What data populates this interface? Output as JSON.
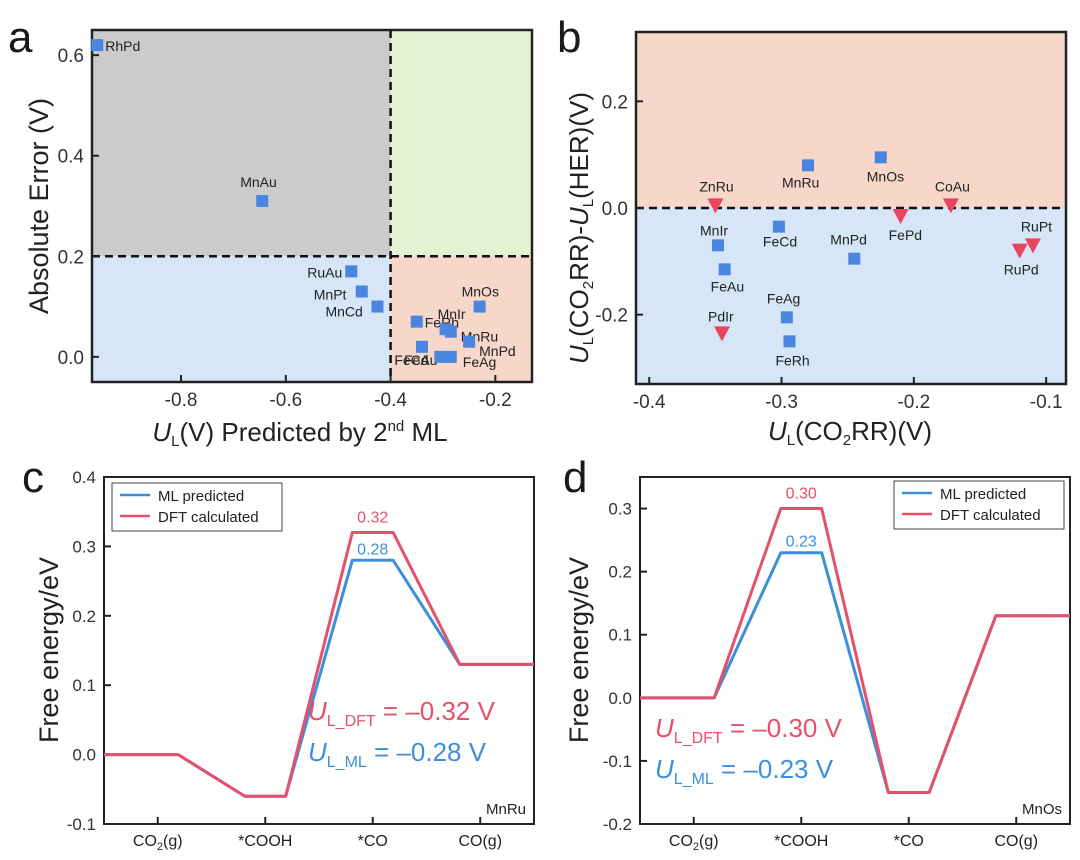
{
  "colors": {
    "grey_region": "#cbcbcb",
    "green_region": "#e2f3d4",
    "blue_region": "#d6e6f6",
    "salmon_region": "#f6d7c9",
    "square_marker": "#4a86e0",
    "triangle_marker": "#e8455e",
    "ml_line": "#3e8fdb",
    "dft_line": "#e5506b"
  },
  "chart_data": [
    {
      "id": "a",
      "panel_label": "a",
      "type": "scatter",
      "xlabel_italic": "U",
      "xlabel_sub": "L",
      "xlabel_rest": "(V) Predicted by 2",
      "xlabel_sup": "nd",
      "xlabel_end": " ML",
      "ylabel": "Absolute Error (V)",
      "xlim": [
        -0.97,
        -0.13
      ],
      "ylim": [
        -0.05,
        0.65
      ],
      "xticks": [
        -0.8,
        -0.6,
        -0.4,
        -0.2
      ],
      "xtick_labels": [
        "-0.8",
        "-0.6",
        "-0.4",
        "-0.2"
      ],
      "yticks": [
        0.0,
        0.2,
        0.4,
        0.6
      ],
      "ytick_labels": [
        "0.0",
        "0.2",
        "0.4",
        "0.6"
      ],
      "divider_x": -0.4,
      "divider_y": 0.2,
      "points": [
        {
          "label": "RhPd",
          "x": -0.96,
          "y": 0.62
        },
        {
          "label": "MnAu",
          "x": -0.645,
          "y": 0.31
        },
        {
          "label": "RuAu",
          "x": -0.475,
          "y": 0.17
        },
        {
          "label": "MnPt",
          "x": -0.455,
          "y": 0.13
        },
        {
          "label": "MnCd",
          "x": -0.425,
          "y": 0.1
        },
        {
          "label": "FeRh",
          "x": -0.35,
          "y": 0.07
        },
        {
          "label": "FeAu",
          "x": -0.34,
          "y": 0.02
        },
        {
          "label": "FeCd",
          "x": -0.305,
          "y": 0.0
        },
        {
          "label": "MnIr",
          "x": -0.295,
          "y": 0.055
        },
        {
          "label": "MnRu",
          "x": -0.285,
          "y": 0.05
        },
        {
          "label": "MnOs",
          "x": -0.23,
          "y": 0.1
        },
        {
          "label": "MnPd",
          "x": -0.25,
          "y": 0.03
        },
        {
          "label": "FeAg",
          "x": -0.285,
          "y": 0.0
        }
      ]
    },
    {
      "id": "b",
      "panel_label": "b",
      "type": "scatter",
      "xlabel": "U(CO2RR)(V)",
      "ylabel": "U(CO2RR)-U(HER)(V)",
      "xlim": [
        -0.41,
        -0.085
      ],
      "ylim": [
        -0.33,
        0.33
      ],
      "xticks": [
        -0.4,
        -0.3,
        -0.2,
        -0.1
      ],
      "xtick_labels": [
        "-0.4",
        "-0.3",
        "-0.2",
        "-0.1"
      ],
      "yticks": [
        -0.2,
        0.0,
        0.2
      ],
      "ytick_labels": [
        "-0.2",
        "0.0",
        "0.2"
      ],
      "divider_y": 0.0,
      "squares": [
        {
          "label": "MnRu",
          "x": -0.28,
          "y": 0.08
        },
        {
          "label": "MnOs",
          "x": -0.225,
          "y": 0.095
        },
        {
          "label": "MnIr",
          "x": -0.348,
          "y": -0.07
        },
        {
          "label": "FeCd",
          "x": -0.302,
          "y": -0.035
        },
        {
          "label": "MnPd",
          "x": -0.245,
          "y": -0.095
        },
        {
          "label": "FeAu",
          "x": -0.343,
          "y": -0.115
        },
        {
          "label": "FeAg",
          "x": -0.296,
          "y": -0.205
        },
        {
          "label": "FeRh",
          "x": -0.294,
          "y": -0.25
        }
      ],
      "triangles": [
        {
          "label": "ZnRu",
          "x": -0.35,
          "y": 0.005
        },
        {
          "label": "CoAu",
          "x": -0.172,
          "y": 0.005
        },
        {
          "label": "FePd",
          "x": -0.21,
          "y": -0.015
        },
        {
          "label": "RuPt",
          "x": -0.11,
          "y": -0.07
        },
        {
          "label": "RuPd",
          "x": -0.12,
          "y": -0.08
        },
        {
          "label": "PdIr",
          "x": -0.345,
          "y": -0.235
        }
      ]
    },
    {
      "id": "c",
      "panel_label": "c",
      "type": "line",
      "ylabel": "Free energy/eV",
      "categories": [
        "CO2(g)",
        "*COOH",
        "*CO",
        "CO(g)"
      ],
      "ylim": [
        -0.1,
        0.4
      ],
      "yticks": [
        -0.1,
        0.0,
        0.1,
        0.2,
        0.3,
        0.4
      ],
      "ytick_labels": [
        "-0.1",
        "0.0",
        "0.1",
        "0.2",
        "0.3",
        "0.4"
      ],
      "series": [
        {
          "name": "ML predicted",
          "values": [
            0.0,
            -0.06,
            0.28,
            0.13
          ]
        },
        {
          "name": "DFT calculated",
          "values": [
            0.0,
            -0.06,
            0.32,
            0.13
          ]
        }
      ],
      "peak_labels": [
        "0.32",
        "0.28"
      ],
      "dft_eq": "= –0.32 V",
      "ml_eq": "= –0.28 V",
      "u_letter": "U",
      "dft_sub": "L_DFT",
      "ml_sub": "L_ML",
      "tag": "MnRu"
    },
    {
      "id": "d",
      "panel_label": "d",
      "type": "line",
      "ylabel": "Free energy/eV",
      "categories": [
        "CO2(g)",
        "*COOH",
        "*CO",
        "CO(g)"
      ],
      "ylim": [
        -0.2,
        0.35
      ],
      "yticks": [
        -0.2,
        -0.1,
        0.0,
        0.1,
        0.2,
        0.3
      ],
      "ytick_labels": [
        "-0.2",
        "-0.1",
        "0.0",
        "0.1",
        "0.2",
        "0.3"
      ],
      "series": [
        {
          "name": "ML predicted",
          "values": [
            0.0,
            0.23,
            -0.15,
            0.13
          ]
        },
        {
          "name": "DFT calculated",
          "values": [
            0.0,
            0.3,
            -0.15,
            0.13
          ]
        }
      ],
      "peak_labels": [
        "0.30",
        "0.23"
      ],
      "dft_eq": "= –0.30 V",
      "ml_eq": "= –0.23 V",
      "u_letter": "U",
      "dft_sub": "L_DFT",
      "ml_sub": "L_ML",
      "tag": "MnOs"
    }
  ]
}
